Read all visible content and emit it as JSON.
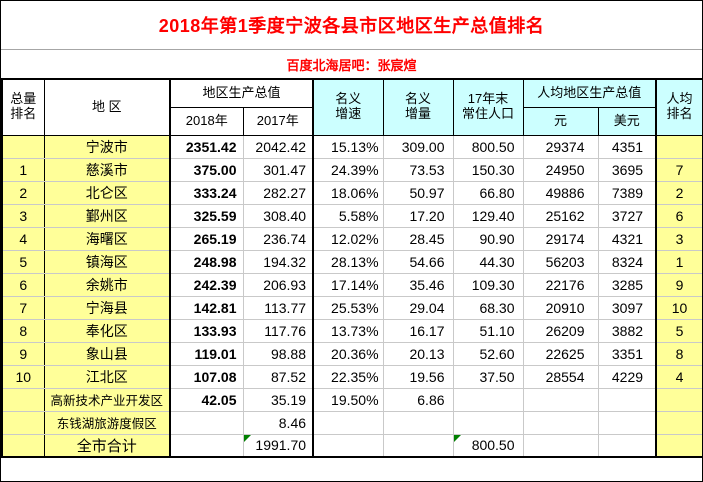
{
  "page": {
    "title": "2018年第1季度宁波各县市区地区生产总值排名",
    "subtitle": "百度北海居吧：张宸煊"
  },
  "colors": {
    "title_red": "#FF0000",
    "highlight_yellow": "#FFFF99",
    "header_cyan": "#CCFFFF",
    "grid_gray": "#C9C9C9",
    "border_black": "#000000",
    "flag_green": "#008000"
  },
  "table": {
    "headers": {
      "total_rank_l1": "总量",
      "total_rank_l2": "排名",
      "region": "地 区",
      "gdp_group": "地区生产总值",
      "col_2018": "2018年",
      "col_2017": "2017年",
      "growth_l1": "名义",
      "growth_l2": "增速",
      "increment_l1": "名义",
      "increment_l2": "增量",
      "population_l1": "17年末",
      "population_l2": "常住人口",
      "percapita_group": "人均地区生产总值",
      "yuan": "元",
      "usd": "美元",
      "percapita_rank_l1": "人均",
      "percapita_rank_l2": "排名"
    },
    "rows": [
      {
        "rank": "",
        "region": "宁波市",
        "gdp2018": "2351.42",
        "gdp2017": "2042.42",
        "growth": "15.13%",
        "increment": "309.00",
        "population": "800.50",
        "yuan": "29374",
        "usd": "4351",
        "prank": ""
      },
      {
        "rank": "1",
        "region": "慈溪市",
        "gdp2018": "375.00",
        "gdp2017": "301.47",
        "growth": "24.39%",
        "increment": "73.53",
        "population": "150.30",
        "yuan": "24950",
        "usd": "3695",
        "prank": "7"
      },
      {
        "rank": "2",
        "region": "北仑区",
        "gdp2018": "333.24",
        "gdp2017": "282.27",
        "growth": "18.06%",
        "increment": "50.97",
        "population": "66.80",
        "yuan": "49886",
        "usd": "7389",
        "prank": "2"
      },
      {
        "rank": "3",
        "region": "鄞州区",
        "gdp2018": "325.59",
        "gdp2017": "308.40",
        "growth": "5.58%",
        "increment": "17.20",
        "population": "129.40",
        "yuan": "25162",
        "usd": "3727",
        "prank": "6"
      },
      {
        "rank": "4",
        "region": "海曙区",
        "gdp2018": "265.19",
        "gdp2017": "236.74",
        "growth": "12.02%",
        "increment": "28.45",
        "population": "90.90",
        "yuan": "29174",
        "usd": "4321",
        "prank": "3"
      },
      {
        "rank": "5",
        "region": "镇海区",
        "gdp2018": "248.98",
        "gdp2017": "194.32",
        "growth": "28.13%",
        "increment": "54.66",
        "population": "44.30",
        "yuan": "56203",
        "usd": "8324",
        "prank": "1"
      },
      {
        "rank": "6",
        "region": "余姚市",
        "gdp2018": "242.39",
        "gdp2017": "206.93",
        "growth": "17.14%",
        "increment": "35.46",
        "population": "109.30",
        "yuan": "22176",
        "usd": "3285",
        "prank": "9"
      },
      {
        "rank": "7",
        "region": "宁海县",
        "gdp2018": "142.81",
        "gdp2017": "113.77",
        "growth": "25.53%",
        "increment": "29.04",
        "population": "68.30",
        "yuan": "20910",
        "usd": "3097",
        "prank": "10"
      },
      {
        "rank": "8",
        "region": "奉化区",
        "gdp2018": "133.93",
        "gdp2017": "117.76",
        "growth": "13.73%",
        "increment": "16.17",
        "population": "51.10",
        "yuan": "26209",
        "usd": "3882",
        "prank": "5"
      },
      {
        "rank": "9",
        "region": "象山县",
        "gdp2018": "119.01",
        "gdp2017": "98.88",
        "growth": "20.36%",
        "increment": "20.13",
        "population": "52.60",
        "yuan": "22625",
        "usd": "3351",
        "prank": "8"
      },
      {
        "rank": "10",
        "region": "江北区",
        "gdp2018": "107.08",
        "gdp2017": "87.52",
        "growth": "22.35%",
        "increment": "19.56",
        "population": "37.50",
        "yuan": "28554",
        "usd": "4229",
        "prank": "4"
      },
      {
        "rank": "",
        "region": "高新技术产业开发区",
        "gdp2018": "42.05",
        "gdp2017": "35.19",
        "growth": "19.50%",
        "increment": "6.86",
        "population": "",
        "yuan": "",
        "usd": "",
        "prank": ""
      },
      {
        "rank": "",
        "region": "东钱湖旅游度假区",
        "gdp2018": "",
        "gdp2017": "8.46",
        "growth": "",
        "increment": "",
        "population": "",
        "yuan": "",
        "usd": "",
        "prank": ""
      },
      {
        "rank": "",
        "region": "全市合计",
        "gdp2018": "",
        "gdp2017": "1991.70",
        "growth": "",
        "increment": "",
        "population": "800.50",
        "yuan": "",
        "usd": "",
        "prank": "",
        "total": true,
        "flags": [
          "gdp2017",
          "population"
        ]
      }
    ]
  }
}
